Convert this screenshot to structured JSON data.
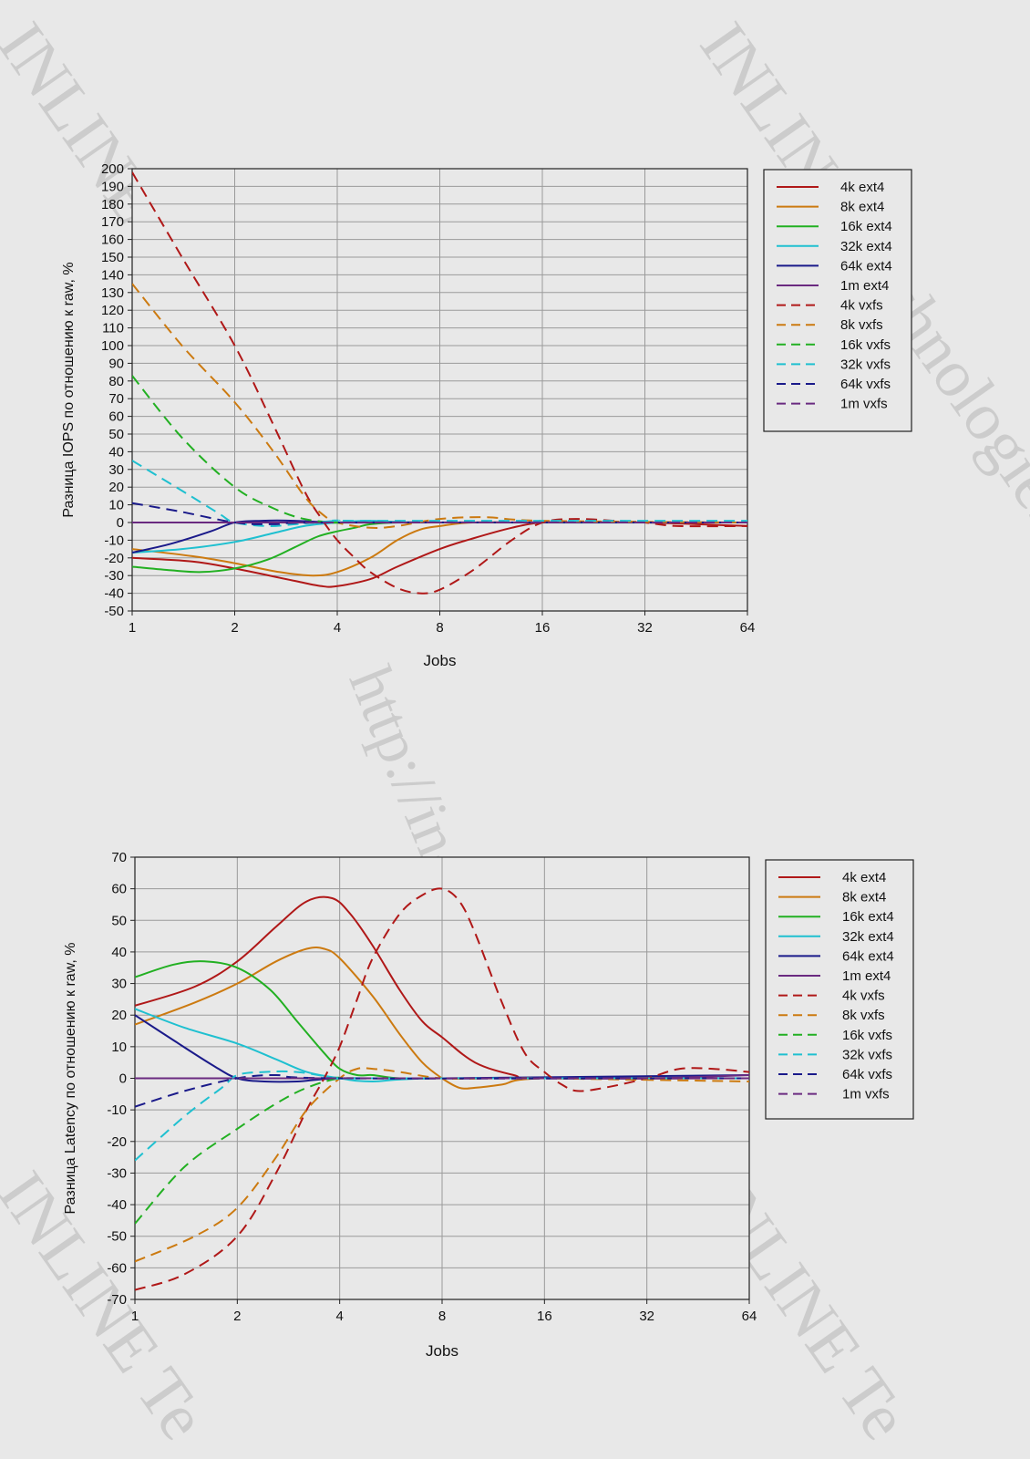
{
  "watermarks": [
    "INLINE Technologies",
    "INLINE Technologies",
    "http://in-line.ru/",
    "INLINE Te",
    "INLINE Te"
  ],
  "chart_data": [
    {
      "type": "line",
      "xlabel": "Jobs",
      "ylabel": "Разница IOPS по отношению к raw, %",
      "x_scale": "log2",
      "x": [
        1,
        2,
        4,
        8,
        16,
        32,
        64
      ],
      "x_ticks": [
        "1",
        "2",
        "4",
        "8",
        "16",
        "32",
        "64"
      ],
      "ylim": [
        -50,
        200
      ],
      "y_step": 10,
      "grid": true,
      "legend_position": "right",
      "series": [
        {
          "name": "4k ext4",
          "color": "#b01818",
          "style": "solid",
          "x": [
            1,
            1.5,
            2,
            3,
            3.6,
            4,
            5,
            6,
            8,
            10,
            13,
            16,
            22,
            32,
            64
          ],
          "values": [
            -20,
            -22,
            -26,
            -33,
            -36,
            -36,
            -32,
            -25,
            -15,
            -9,
            -3,
            0,
            0,
            0,
            -2
          ]
        },
        {
          "name": "8k ext4",
          "color": "#cc7a10",
          "style": "solid",
          "x": [
            1,
            1.5,
            2,
            2.7,
            3.4,
            4,
            5,
            6,
            7,
            8,
            10,
            16,
            64
          ],
          "values": [
            -15,
            -19,
            -23,
            -28,
            -30,
            -28,
            -20,
            -10,
            -4,
            -2,
            0,
            0,
            0
          ]
        },
        {
          "name": "16k ext4",
          "color": "#22b022",
          "style": "solid",
          "x": [
            1,
            1.3,
            1.6,
            2,
            2.5,
            3,
            3.5,
            4,
            4.5,
            5,
            6,
            8,
            64
          ],
          "values": [
            -25,
            -27,
            -28,
            -26,
            -21,
            -14,
            -8,
            -5,
            -3,
            -1,
            0,
            0,
            0
          ]
        },
        {
          "name": "32k ext4",
          "color": "#1fc0d0",
          "style": "solid",
          "x": [
            1,
            1.4,
            2,
            2.6,
            3.2,
            4,
            5,
            8,
            64
          ],
          "values": [
            -17,
            -15,
            -11,
            -6,
            -2,
            0,
            1,
            0,
            0
          ]
        },
        {
          "name": "64k ext4",
          "color": "#1a1a8a",
          "style": "solid",
          "x": [
            1,
            1.3,
            1.7,
            2,
            2.4,
            3,
            4,
            8,
            64
          ],
          "values": [
            -17,
            -12,
            -5,
            0,
            1,
            1,
            0,
            0,
            0
          ]
        },
        {
          "name": "1m ext4",
          "color": "#6a2a80",
          "style": "solid",
          "x": [
            1,
            2,
            4,
            8,
            16,
            32,
            64
          ],
          "values": [
            0,
            0,
            0,
            0,
            0,
            0,
            0
          ]
        },
        {
          "name": "4k vxfs",
          "color": "#b01818",
          "style": "dashed",
          "x": [
            1,
            1.4,
            2,
            2.6,
            3.2,
            3.6,
            4,
            4.5,
            5,
            6,
            7,
            8,
            10,
            13,
            16,
            20,
            26,
            32,
            40,
            64
          ],
          "values": [
            198,
            150,
            100,
            55,
            18,
            2,
            -10,
            -20,
            -28,
            -37,
            -40,
            -38,
            -27,
            -10,
            0,
            2,
            1,
            0,
            -2,
            -2
          ]
        },
        {
          "name": "8k vxfs",
          "color": "#cc7a10",
          "style": "dashed",
          "x": [
            1,
            1.4,
            2,
            2.6,
            3.2,
            3.6,
            4,
            5,
            6,
            8,
            11,
            16,
            64
          ],
          "values": [
            135,
            100,
            68,
            40,
            15,
            5,
            0,
            -3,
            -2,
            2,
            3,
            1,
            0
          ]
        },
        {
          "name": "16k vxfs",
          "color": "#22b022",
          "style": "dashed",
          "x": [
            1,
            1.4,
            2,
            2.6,
            3.2,
            4,
            5,
            64
          ],
          "values": [
            83,
            48,
            20,
            8,
            2,
            0,
            0,
            0
          ]
        },
        {
          "name": "32k vxfs",
          "color": "#1fc0d0",
          "style": "dashed",
          "x": [
            1,
            1.4,
            1.8,
            2,
            2.5,
            3,
            4,
            5,
            64
          ],
          "values": [
            35,
            18,
            5,
            0,
            -2,
            -1,
            1,
            1,
            1
          ]
        },
        {
          "name": "64k vxfs",
          "color": "#1a1a8a",
          "style": "dashed",
          "x": [
            1,
            1.4,
            2,
            2.6,
            4,
            64
          ],
          "values": [
            11,
            6,
            0,
            -1,
            0,
            0
          ]
        },
        {
          "name": "1m vxfs",
          "color": "#6a2a80",
          "style": "dashed",
          "x": [
            1,
            2,
            4,
            8,
            16,
            32,
            64
          ],
          "values": [
            0,
            0,
            0,
            0,
            0,
            0,
            0
          ]
        }
      ]
    },
    {
      "type": "line",
      "xlabel": "Jobs",
      "ylabel": "Разница Latency по отношению к raw, %",
      "x_scale": "log2",
      "x": [
        1,
        2,
        4,
        8,
        16,
        32,
        64
      ],
      "x_ticks": [
        "1",
        "2",
        "4",
        "8",
        "16",
        "32",
        "64"
      ],
      "ylim": [
        -70,
        70
      ],
      "y_step": 10,
      "grid": true,
      "legend_position": "right",
      "series": [
        {
          "name": "4k ext4",
          "color": "#b01818",
          "style": "solid",
          "x": [
            1,
            1.5,
            2,
            2.6,
            3.2,
            3.8,
            4.3,
            5,
            6,
            7,
            8,
            10,
            13,
            16,
            64
          ],
          "values": [
            23,
            29,
            37,
            48,
            56,
            57,
            52,
            42,
            28,
            18,
            13,
            5,
            1,
            0,
            0
          ]
        },
        {
          "name": "8k ext4",
          "color": "#cc7a10",
          "style": "solid",
          "x": [
            1,
            1.5,
            2,
            2.6,
            3.2,
            3.6,
            4,
            5,
            6,
            7,
            8,
            9,
            10,
            12,
            16,
            64
          ],
          "values": [
            17,
            24,
            30,
            37,
            41,
            41,
            38,
            26,
            14,
            5,
            0,
            -3,
            -3,
            -2,
            0,
            0
          ]
        },
        {
          "name": "16k ext4",
          "color": "#22b022",
          "style": "solid",
          "x": [
            1,
            1.3,
            1.6,
            2,
            2.5,
            3,
            3.6,
            4,
            4.5,
            5,
            6,
            8,
            64
          ],
          "values": [
            32,
            36,
            37,
            35,
            28,
            18,
            8,
            3,
            1,
            1,
            0,
            0,
            0
          ]
        },
        {
          "name": "32k ext4",
          "color": "#1fc0d0",
          "style": "solid",
          "x": [
            1,
            1.4,
            2,
            2.6,
            3.2,
            4,
            5,
            8,
            64
          ],
          "values": [
            22,
            16,
            11,
            6,
            2,
            0,
            -1,
            0,
            0
          ]
        },
        {
          "name": "64k ext4",
          "color": "#1a1a8a",
          "style": "solid",
          "x": [
            1,
            1.3,
            1.7,
            2,
            2.4,
            3,
            4,
            8,
            64
          ],
          "values": [
            20,
            12,
            4,
            0,
            -1,
            -1,
            0,
            0,
            1
          ]
        },
        {
          "name": "1m ext4",
          "color": "#6a2a80",
          "style": "solid",
          "x": [
            1,
            2,
            4,
            8,
            16,
            32,
            64
          ],
          "values": [
            0,
            0,
            0,
            0,
            0,
            0,
            1
          ]
        },
        {
          "name": "4k vxfs",
          "color": "#b01818",
          "style": "dashed",
          "x": [
            1,
            1.4,
            2,
            2.6,
            3.2,
            3.6,
            4,
            4.5,
            5,
            6,
            7,
            8,
            9,
            10,
            12,
            14,
            16,
            18,
            20,
            24,
            32,
            40,
            50,
            64
          ],
          "values": [
            -67,
            -62,
            -50,
            -30,
            -10,
            0,
            10,
            25,
            38,
            52,
            58,
            60,
            56,
            46,
            24,
            8,
            2,
            -2,
            -4,
            -3,
            0,
            3,
            3,
            2
          ]
        },
        {
          "name": "8k vxfs",
          "color": "#cc7a10",
          "style": "dashed",
          "x": [
            1,
            1.5,
            2,
            2.6,
            3.2,
            4,
            4.5,
            5,
            6,
            8,
            12,
            16,
            64
          ],
          "values": [
            -58,
            -50,
            -41,
            -25,
            -10,
            0,
            3,
            3,
            2,
            0,
            0,
            0,
            -1
          ]
        },
        {
          "name": "16k vxfs",
          "color": "#22b022",
          "style": "dashed",
          "x": [
            1,
            1.4,
            2,
            2.6,
            3.2,
            4,
            5,
            64
          ],
          "values": [
            -46,
            -28,
            -16,
            -8,
            -3,
            0,
            0,
            0
          ]
        },
        {
          "name": "32k vxfs",
          "color": "#1fc0d0",
          "style": "dashed",
          "x": [
            1,
            1.4,
            1.8,
            2,
            2.4,
            3,
            4,
            5,
            64
          ],
          "values": [
            -26,
            -12,
            -3,
            1,
            2,
            2,
            0,
            0,
            0
          ]
        },
        {
          "name": "64k vxfs",
          "color": "#1a1a8a",
          "style": "dashed",
          "x": [
            1,
            1.4,
            2,
            2.6,
            4,
            64
          ],
          "values": [
            -9,
            -4,
            0,
            1,
            0,
            0
          ]
        },
        {
          "name": "1m vxfs",
          "color": "#6a2a80",
          "style": "dashed",
          "x": [
            1,
            2,
            4,
            8,
            16,
            32,
            64
          ],
          "values": [
            0,
            0,
            0,
            0,
            0,
            0,
            0
          ]
        }
      ]
    }
  ]
}
